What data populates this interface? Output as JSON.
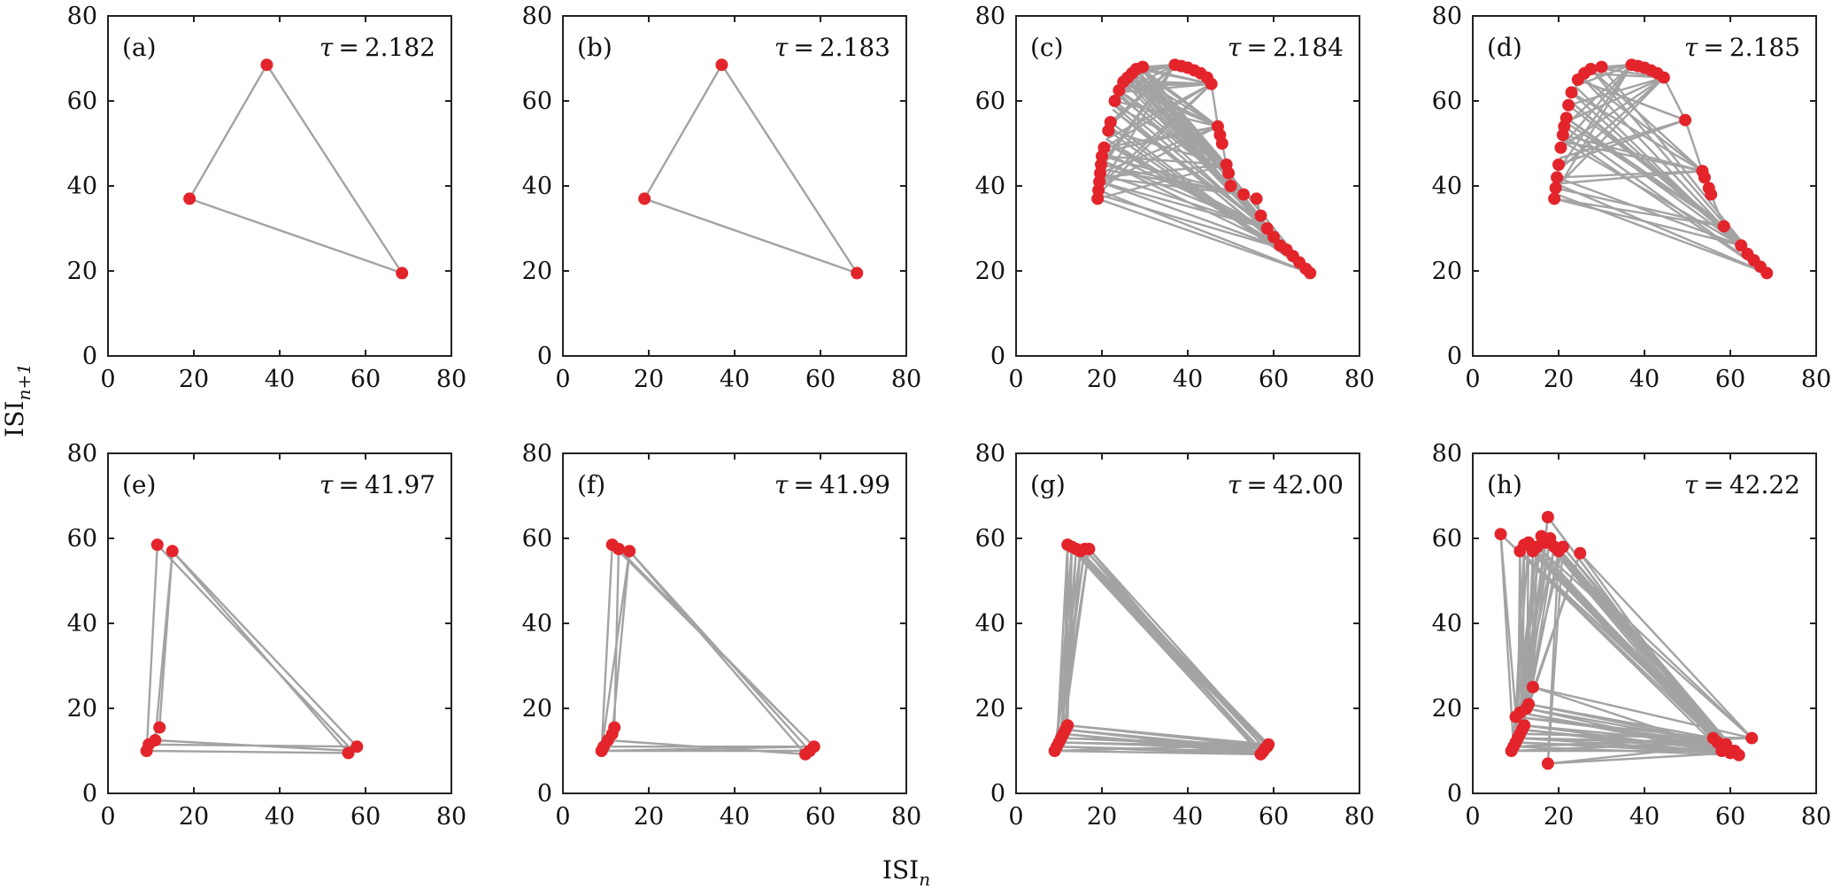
{
  "xlabel": "ISI_n",
  "ylabel": "ISI_{n+1}",
  "colors": {
    "marker": "#e3242b",
    "line": "#a3a3a3"
  },
  "chart_data": [
    {
      "type": "scatter",
      "panel": "(a)",
      "tau_label": "τ = 2.182",
      "xlim": [
        0,
        80
      ],
      "ylim": [
        0,
        80
      ],
      "xticks": [
        "0",
        "20",
        "40",
        "60",
        "80"
      ],
      "yticks": [
        "0",
        "20",
        "40",
        "60",
        "80"
      ],
      "points": [
        [
          19,
          37
        ],
        [
          37,
          68.5
        ],
        [
          68.5,
          19.5
        ]
      ],
      "path": [
        [
          19,
          37
        ],
        [
          37,
          68.5
        ],
        [
          68.5,
          19.5
        ],
        [
          19,
          37
        ]
      ]
    },
    {
      "type": "scatter",
      "panel": "(b)",
      "tau_label": "τ = 2.183",
      "xlim": [
        0,
        80
      ],
      "ylim": [
        0,
        80
      ],
      "xticks": [
        "0",
        "20",
        "40",
        "60",
        "80"
      ],
      "yticks": [
        "0",
        "20",
        "40",
        "60",
        "80"
      ],
      "points": [
        [
          19,
          37
        ],
        [
          37,
          68.5
        ],
        [
          68.5,
          19.5
        ]
      ],
      "path": [
        [
          19,
          37
        ],
        [
          37,
          68.5
        ],
        [
          68.5,
          19.5
        ],
        [
          19,
          37
        ]
      ]
    },
    {
      "type": "scatter",
      "panel": "(c)",
      "tau_label": "τ = 2.184",
      "xlim": [
        0,
        80
      ],
      "ylim": [
        0,
        80
      ],
      "xticks": [
        "0",
        "20",
        "40",
        "60",
        "80"
      ],
      "yticks": [
        "0",
        "20",
        "40",
        "60",
        "80"
      ],
      "points": [
        [
          19,
          37
        ],
        [
          19.2,
          39
        ],
        [
          19.4,
          41
        ],
        [
          19.6,
          43
        ],
        [
          19.8,
          45
        ],
        [
          20,
          47
        ],
        [
          20.5,
          49
        ],
        [
          21.5,
          53
        ],
        [
          22,
          55
        ],
        [
          23,
          60
        ],
        [
          24,
          62.5
        ],
        [
          25,
          64.5
        ],
        [
          26,
          65.5
        ],
        [
          27,
          66.5
        ],
        [
          28,
          67.5
        ],
        [
          29.5,
          68
        ],
        [
          37,
          68.5
        ],
        [
          38.5,
          68.2
        ],
        [
          40,
          67.8
        ],
        [
          41.5,
          67.2
        ],
        [
          43,
          66.5
        ],
        [
          44.5,
          65.5
        ],
        [
          45.5,
          64
        ],
        [
          47,
          54
        ],
        [
          47.5,
          52
        ],
        [
          48,
          50
        ],
        [
          49,
          45
        ],
        [
          49.5,
          43
        ],
        [
          50,
          40
        ],
        [
          53,
          38
        ],
        [
          56,
          37
        ],
        [
          57,
          33
        ],
        [
          58.5,
          30
        ],
        [
          60,
          28
        ],
        [
          61.5,
          26
        ],
        [
          63,
          25
        ],
        [
          64.5,
          23.5
        ],
        [
          66,
          22
        ],
        [
          67.5,
          20.5
        ],
        [
          68.5,
          19.5
        ]
      ],
      "fan_sources": [
        [
          29.5,
          68
        ],
        [
          29.5,
          68
        ],
        [
          29,
          67.8
        ],
        [
          28.5,
          67.5
        ],
        [
          28,
          67.2
        ],
        [
          27.5,
          66.8
        ],
        [
          27,
          66.5
        ],
        [
          26.5,
          66
        ],
        [
          26,
          65.5
        ],
        [
          25.5,
          65
        ],
        [
          25,
          64.5
        ],
        [
          24.5,
          63.5
        ],
        [
          24,
          62.5
        ],
        [
          23.5,
          61.5
        ],
        [
          23,
          60
        ],
        [
          22.5,
          58
        ],
        [
          22,
          55
        ],
        [
          21.5,
          53
        ],
        [
          21,
          51
        ],
        [
          20.5,
          49
        ],
        [
          20,
          47
        ],
        [
          19.8,
          45
        ],
        [
          19.6,
          43
        ],
        [
          19.4,
          41
        ],
        [
          19.2,
          39
        ],
        [
          19,
          37
        ],
        [
          19.1,
          38
        ],
        [
          19.3,
          40
        ],
        [
          19.5,
          42
        ],
        [
          19.7,
          44
        ],
        [
          20.2,
          48
        ],
        [
          21,
          50
        ],
        [
          21.8,
          54
        ],
        [
          22.8,
          59
        ],
        [
          23.8,
          62
        ],
        [
          25.2,
          64.8
        ],
        [
          26.8,
          66.3
        ],
        [
          28.2,
          67.4
        ],
        [
          29,
          67.9
        ],
        [
          20,
          46
        ]
      ],
      "hub_points": [
        [
          37,
          68.5
        ],
        [
          68.5,
          19.5
        ],
        [
          45.5,
          64
        ],
        [
          47,
          54
        ],
        [
          49,
          45
        ],
        [
          53,
          38
        ],
        [
          58.5,
          30
        ],
        [
          63,
          25
        ]
      ]
    },
    {
      "type": "scatter",
      "panel": "(d)",
      "tau_label": "τ = 2.185",
      "xlim": [
        0,
        80
      ],
      "ylim": [
        0,
        80
      ],
      "xticks": [
        "0",
        "20",
        "40",
        "60",
        "80"
      ],
      "yticks": [
        "0",
        "20",
        "40",
        "60",
        "80"
      ],
      "points": [
        [
          19,
          37
        ],
        [
          19.3,
          39.5
        ],
        [
          19.6,
          42
        ],
        [
          20,
          45
        ],
        [
          20.5,
          49
        ],
        [
          21,
          52
        ],
        [
          21.3,
          54
        ],
        [
          21.8,
          56
        ],
        [
          22.3,
          59
        ],
        [
          23,
          62
        ],
        [
          24.5,
          65
        ],
        [
          26,
          66.5
        ],
        [
          27.5,
          67.5
        ],
        [
          30,
          68
        ],
        [
          37,
          68.5
        ],
        [
          38.5,
          68.2
        ],
        [
          40,
          67.8
        ],
        [
          41.5,
          67.2
        ],
        [
          43,
          66.5
        ],
        [
          44.5,
          65.5
        ],
        [
          49.5,
          55.5
        ],
        [
          53.5,
          43.5
        ],
        [
          54,
          42
        ],
        [
          55,
          39.5
        ],
        [
          55.5,
          38
        ],
        [
          58.5,
          30.5
        ],
        [
          62.5,
          26
        ],
        [
          64,
          24
        ],
        [
          65.5,
          22.5
        ],
        [
          67,
          21
        ],
        [
          68.5,
          19.5
        ]
      ],
      "fan_sources": [
        [
          30,
          68
        ],
        [
          27.5,
          67.5
        ],
        [
          26,
          66.5
        ],
        [
          24.5,
          65
        ],
        [
          23,
          62
        ],
        [
          22.3,
          59
        ],
        [
          21.8,
          56
        ],
        [
          21.3,
          54
        ],
        [
          21,
          52
        ],
        [
          20.5,
          49
        ],
        [
          20,
          45
        ],
        [
          19.6,
          42
        ],
        [
          19.3,
          39.5
        ],
        [
          19,
          37
        ],
        [
          19.1,
          38.2
        ],
        [
          19.4,
          40.5
        ],
        [
          19.8,
          43.5
        ],
        [
          20.2,
          46.5
        ],
        [
          20.8,
          50.5
        ],
        [
          21.6,
          55
        ],
        [
          22.6,
          60
        ],
        [
          23.8,
          63.5
        ],
        [
          25.2,
          65.8
        ],
        [
          28.5,
          67.8
        ]
      ],
      "hub_points": [
        [
          37,
          68.5
        ],
        [
          68.5,
          19.5
        ],
        [
          44.5,
          65.5
        ],
        [
          49.5,
          55.5
        ],
        [
          53.5,
          43.5
        ],
        [
          58.5,
          30.5
        ],
        [
          62.5,
          26
        ]
      ]
    },
    {
      "type": "scatter",
      "panel": "(e)",
      "tau_label": "τ = 41.97",
      "xlim": [
        0,
        80
      ],
      "ylim": [
        0,
        80
      ],
      "xticks": [
        "0",
        "20",
        "40",
        "60",
        "80"
      ],
      "yticks": [
        "0",
        "20",
        "40",
        "60",
        "80"
      ],
      "points": [
        [
          11.5,
          58.5
        ],
        [
          15,
          57
        ],
        [
          9,
          10
        ],
        [
          9.5,
          11.5
        ],
        [
          11,
          12.5
        ],
        [
          12,
          15.5
        ],
        [
          56,
          9.5
        ],
        [
          58,
          11
        ]
      ],
      "path": [
        [
          11.5,
          58.5
        ],
        [
          9,
          10
        ],
        [
          56,
          9.5
        ],
        [
          15,
          57
        ],
        [
          12,
          15.5
        ],
        [
          9.5,
          11.5
        ],
        [
          58,
          11
        ],
        [
          15,
          57
        ],
        [
          11,
          12.5
        ],
        [
          57,
          10
        ],
        [
          11.5,
          58.5
        ]
      ]
    },
    {
      "type": "scatter",
      "panel": "(f)",
      "tau_label": "τ = 41.99",
      "xlim": [
        0,
        80
      ],
      "ylim": [
        0,
        80
      ],
      "xticks": [
        "0",
        "20",
        "40",
        "60",
        "80"
      ],
      "yticks": [
        "0",
        "20",
        "40",
        "60",
        "80"
      ],
      "points": [
        [
          11.5,
          58.5
        ],
        [
          13,
          57.5
        ],
        [
          15.5,
          57
        ],
        [
          9,
          10
        ],
        [
          9.5,
          11
        ],
        [
          10.5,
          12.5
        ],
        [
          11.5,
          14
        ],
        [
          12,
          15.5
        ],
        [
          56.5,
          9.2
        ],
        [
          57.5,
          10
        ],
        [
          58.5,
          11
        ]
      ],
      "path": [
        [
          11.5,
          58.5
        ],
        [
          9,
          10
        ],
        [
          57.5,
          10
        ],
        [
          15.5,
          57
        ],
        [
          11.5,
          14
        ],
        [
          9.5,
          11
        ],
        [
          58.5,
          11
        ],
        [
          13,
          57.5
        ],
        [
          12,
          15.5
        ],
        [
          10.5,
          12.5
        ],
        [
          56.5,
          9.2
        ],
        [
          15.5,
          57
        ],
        [
          9,
          10
        ],
        [
          58.5,
          11
        ],
        [
          11.5,
          58.5
        ]
      ]
    },
    {
      "type": "scatter",
      "panel": "(g)",
      "tau_label": "τ = 42.00",
      "xlim": [
        0,
        80
      ],
      "ylim": [
        0,
        80
      ],
      "xticks": [
        "0",
        "20",
        "40",
        "60",
        "80"
      ],
      "yticks": [
        "0",
        "20",
        "40",
        "60",
        "80"
      ],
      "points": [
        [
          12,
          58.5
        ],
        [
          13,
          58
        ],
        [
          14,
          57.5
        ],
        [
          15,
          57
        ],
        [
          16,
          57.5
        ],
        [
          17,
          57.5
        ],
        [
          9,
          10
        ],
        [
          9.5,
          11
        ],
        [
          10,
          12
        ],
        [
          10.5,
          13
        ],
        [
          11,
          14
        ],
        [
          11.5,
          15
        ],
        [
          12,
          16
        ],
        [
          57,
          9.2
        ],
        [
          57.5,
          9.8
        ],
        [
          58,
          10.5
        ],
        [
          58.5,
          11
        ],
        [
          58.8,
          11.5
        ]
      ],
      "web": {
        "top": [
          [
            12,
            58.5
          ],
          [
            13,
            58
          ],
          [
            14,
            57.5
          ],
          [
            15,
            57
          ],
          [
            16,
            57.5
          ],
          [
            17,
            57.5
          ]
        ],
        "bottom_left": [
          [
            9,
            10
          ],
          [
            9.5,
            11
          ],
          [
            10,
            12
          ],
          [
            10.5,
            13
          ],
          [
            11,
            14
          ],
          [
            11.5,
            15
          ],
          [
            12,
            16
          ]
        ],
        "bottom_right": [
          [
            57,
            9.2
          ],
          [
            57.5,
            9.8
          ],
          [
            58,
            10.5
          ],
          [
            58.5,
            11
          ],
          [
            58.8,
            11.5
          ]
        ]
      }
    },
    {
      "type": "scatter",
      "panel": "(h)",
      "tau_label": "τ = 42.22",
      "xlim": [
        0,
        80
      ],
      "ylim": [
        0,
        80
      ],
      "xticks": [
        "0",
        "20",
        "40",
        "60",
        "80"
      ],
      "yticks": [
        "0",
        "20",
        "40",
        "60",
        "80"
      ],
      "points": [
        [
          6.5,
          61
        ],
        [
          17.5,
          65
        ],
        [
          25,
          56.5
        ],
        [
          11,
          57
        ],
        [
          12,
          58.5
        ],
        [
          13,
          59
        ],
        [
          14,
          57
        ],
        [
          15,
          58
        ],
        [
          16,
          60.5
        ],
        [
          17,
          59
        ],
        [
          18,
          60
        ],
        [
          19,
          58
        ],
        [
          20,
          57
        ],
        [
          21,
          58
        ],
        [
          9,
          10
        ],
        [
          9.5,
          11
        ],
        [
          10,
          12
        ],
        [
          10.5,
          13
        ],
        [
          11,
          14
        ],
        [
          11.5,
          15
        ],
        [
          12,
          16
        ],
        [
          10,
          18
        ],
        [
          11,
          19
        ],
        [
          12.5,
          20
        ],
        [
          13,
          21
        ],
        [
          14,
          25
        ],
        [
          17.5,
          7
        ],
        [
          56,
          13
        ],
        [
          57,
          12
        ],
        [
          58,
          10
        ],
        [
          59,
          11.5
        ],
        [
          60,
          9.5
        ],
        [
          61,
          10
        ],
        [
          62,
          9
        ],
        [
          65,
          13
        ]
      ],
      "web": {
        "top": [
          [
            6.5,
            61
          ],
          [
            11,
            57
          ],
          [
            12,
            58.5
          ],
          [
            13,
            59
          ],
          [
            14,
            57
          ],
          [
            15,
            58
          ],
          [
            16,
            60.5
          ],
          [
            17,
            59
          ],
          [
            17.5,
            65
          ],
          [
            18,
            60
          ],
          [
            19,
            58
          ],
          [
            20,
            57
          ],
          [
            21,
            58
          ],
          [
            25,
            56.5
          ]
        ],
        "bottom_left": [
          [
            9,
            10
          ],
          [
            9.5,
            11
          ],
          [
            10,
            12
          ],
          [
            10.5,
            13
          ],
          [
            11,
            14
          ],
          [
            11.5,
            15
          ],
          [
            12,
            16
          ],
          [
            10,
            18
          ],
          [
            11,
            19
          ],
          [
            12.5,
            20
          ],
          [
            13,
            21
          ],
          [
            14,
            25
          ],
          [
            17.5,
            7
          ]
        ],
        "bottom_right": [
          [
            56,
            13
          ],
          [
            57,
            12
          ],
          [
            58,
            10
          ],
          [
            59,
            11.5
          ],
          [
            60,
            9.5
          ],
          [
            61,
            10
          ],
          [
            62,
            9
          ],
          [
            65,
            13
          ]
        ]
      }
    }
  ]
}
